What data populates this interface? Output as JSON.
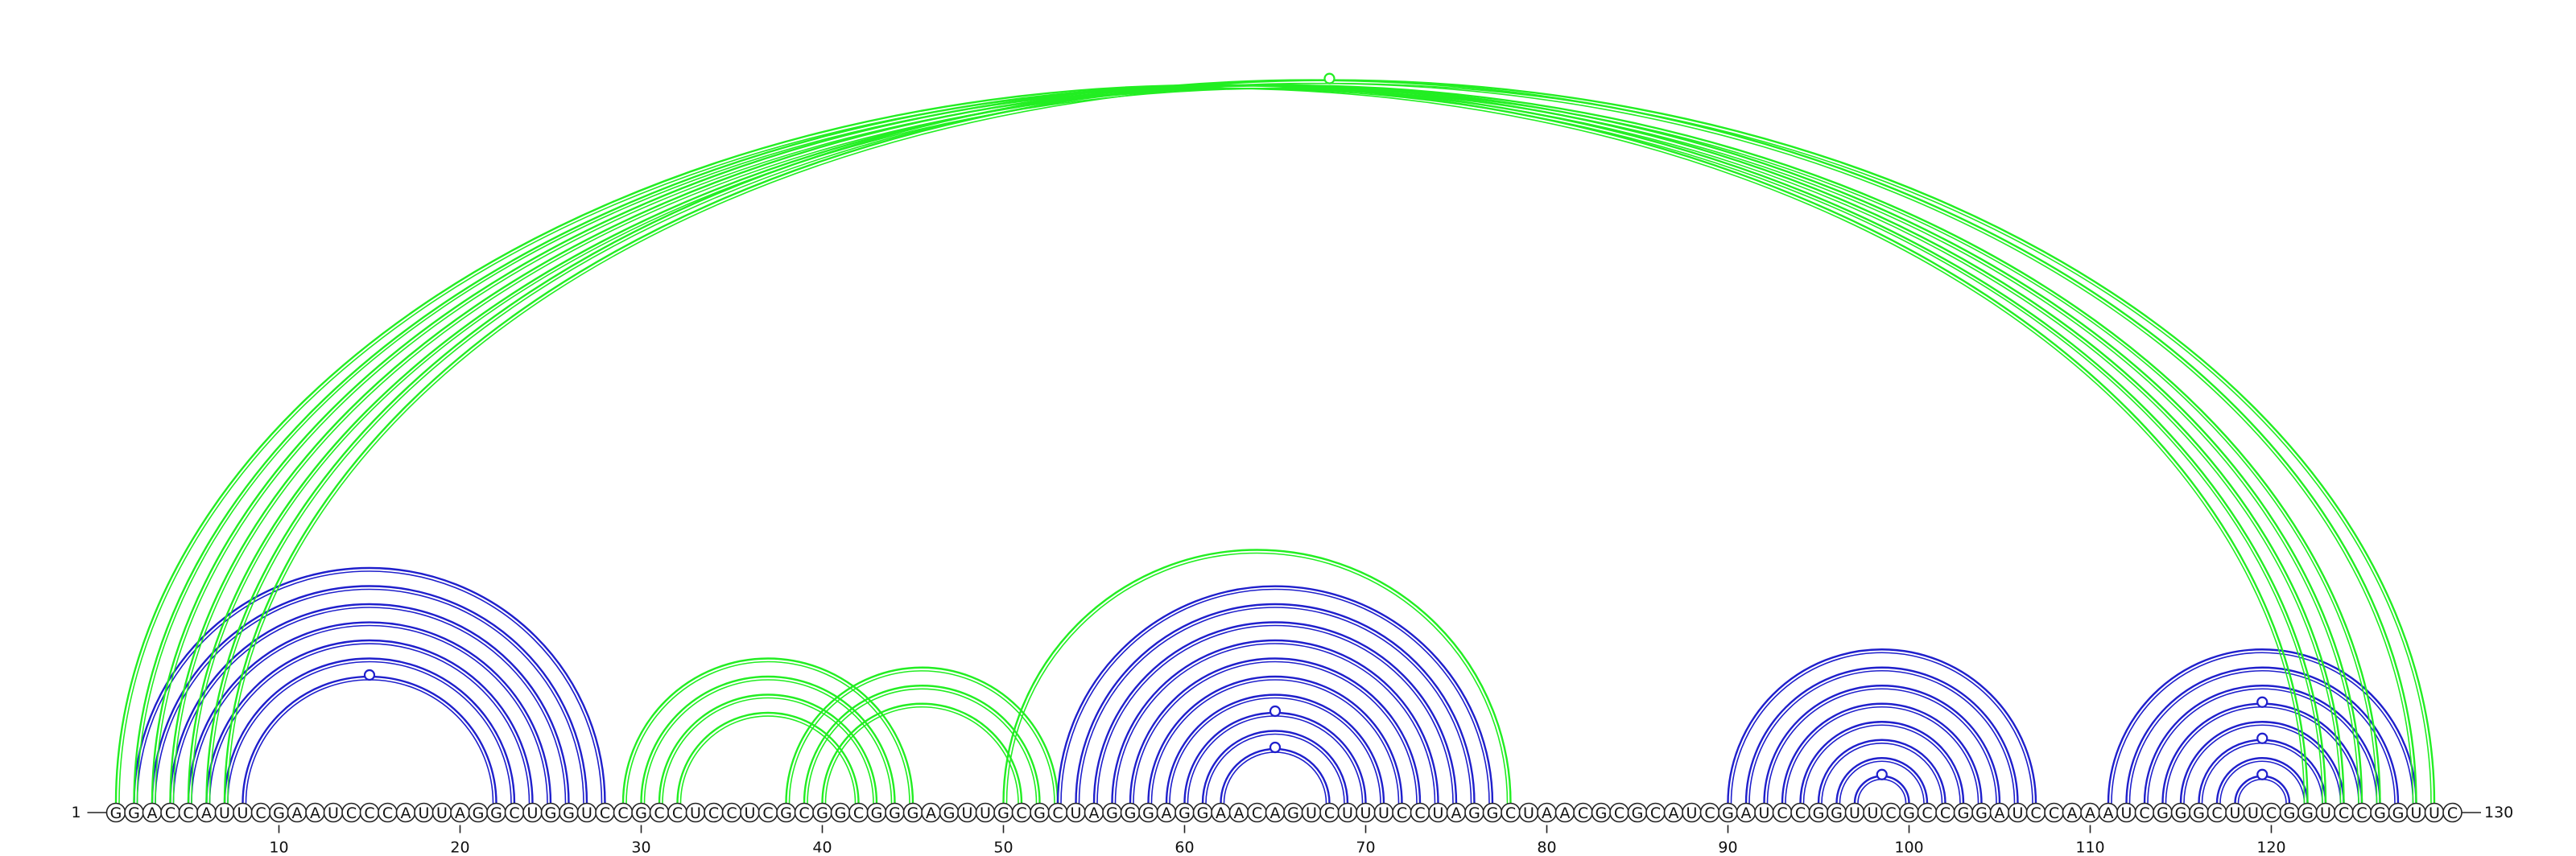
{
  "diagram": {
    "sequence": "GGACCAUUCGAAUCCCAUUAGGCUGGUCCGCCUCCUCGCGGCGGGAGUUGCGCUAGGGAGGAACAGUCUUUCCUAGGCUAACGCGCAUCGAUCCGGUUCGCCGGAUCCAAAUCGGGCUUCGGUCCGGUUC",
    "length": 130,
    "start_label": "1",
    "end_label": "130",
    "tick_positions": [
      10,
      20,
      30,
      40,
      50,
      60,
      70,
      80,
      90,
      100,
      110,
      120
    ],
    "tick_labels": [
      "10",
      "20",
      "30",
      "40",
      "50",
      "60",
      "70",
      "80",
      "90",
      "100",
      "110",
      "120"
    ],
    "colors": {
      "blue": "#1f1fcc",
      "green": "#22ee22",
      "text": "#111111"
    },
    "helices": [
      {
        "color": "blue",
        "stem": [
          [
            2,
            28
          ],
          [
            3,
            27
          ],
          [
            4,
            26
          ],
          [
            5,
            25
          ],
          [
            6,
            24
          ],
          [
            7,
            23
          ],
          [
            8,
            22
          ]
        ],
        "markers": [
          15
        ]
      },
      {
        "color": "green",
        "stem": [
          [
            29,
            45
          ],
          [
            30,
            44
          ],
          [
            31,
            43
          ],
          [
            32,
            42
          ]
        ],
        "markers": []
      },
      {
        "color": "green",
        "stem": [
          [
            38,
            53
          ],
          [
            39,
            52
          ],
          [
            40,
            51
          ]
        ],
        "markers": []
      },
      {
        "color": "green",
        "stem": [
          [
            50,
            78
          ]
        ],
        "markers": []
      },
      {
        "color": "blue",
        "stem": [
          [
            53,
            77
          ],
          [
            54,
            76
          ],
          [
            55,
            75
          ],
          [
            56,
            74
          ],
          [
            57,
            73
          ],
          [
            58,
            72
          ],
          [
            59,
            71
          ],
          [
            60,
            70
          ],
          [
            61,
            69
          ],
          [
            62,
            68
          ]
        ],
        "markers": [
          65,
          65
        ]
      },
      {
        "color": "blue",
        "stem": [
          [
            90,
            107
          ],
          [
            91,
            106
          ],
          [
            92,
            105
          ],
          [
            93,
            104
          ],
          [
            94,
            103
          ],
          [
            95,
            102
          ],
          [
            96,
            101
          ],
          [
            97,
            100
          ]
        ],
        "markers": [
          98
        ]
      },
      {
        "color": "blue",
        "stem": [
          [
            111,
            128
          ],
          [
            112,
            127
          ],
          [
            113,
            126
          ],
          [
            114,
            125
          ],
          [
            115,
            124
          ],
          [
            116,
            123
          ],
          [
            117,
            122
          ],
          [
            118,
            121
          ]
        ],
        "markers": [
          120,
          120,
          120
        ]
      },
      {
        "color": "green",
        "stem": [
          [
            1,
            122
          ],
          [
            2,
            123
          ],
          [
            3,
            124
          ],
          [
            4,
            125
          ],
          [
            5,
            126
          ],
          [
            6,
            128
          ],
          [
            7,
            129
          ]
        ],
        "markers": [
          66
        ]
      }
    ]
  }
}
